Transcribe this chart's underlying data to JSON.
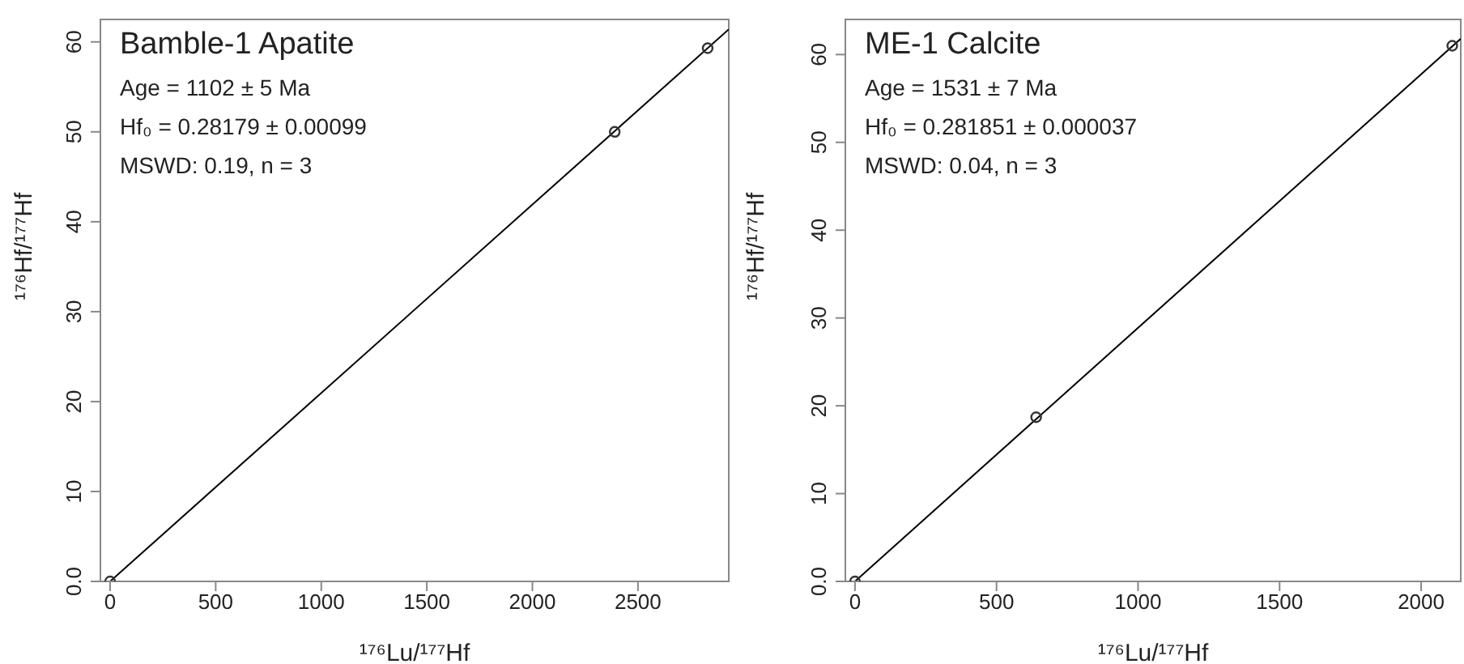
{
  "chart_data": [
    {
      "type": "scatter",
      "title": "Bamble-1 Apatite",
      "annotations": [
        "Age = 1102 ± 5 Ma",
        "Hf₀ = 0.28179 ± 0.00099",
        "MSWD: 0.19, n = 3"
      ],
      "xlabel": "¹⁷⁶Lu/¹⁷⁷Hf",
      "ylabel": "¹⁷⁶Hf/¹⁷⁷Hf",
      "xlim": [
        -46,
        2930
      ],
      "ylim": [
        0,
        62.5
      ],
      "xticks": [
        0,
        500,
        1000,
        1500,
        2000,
        2500
      ],
      "yticks": [
        {
          "value": 0,
          "label": "0.0"
        },
        10,
        20,
        30,
        40,
        50,
        60
      ],
      "marker": "circle",
      "grid": false,
      "series": [
        {
          "color": "#333333",
          "x": [
            0,
            2390,
            2830
          ],
          "values": [
            0,
            50,
            59.3
          ]
        },
        {
          "type": "line",
          "color": "#000000",
          "x": [
            0,
            2930
          ],
          "values": [
            0,
            61.4
          ],
          "marker": "none",
          "line_style": "solid"
        }
      ]
    },
    {
      "type": "scatter",
      "title": "ME-1 Calcite",
      "annotations": [
        "Age = 1531 ± 7 Ma",
        "Hf₀ = 0.281851 ± 0.000037",
        "MSWD: 0.04, n = 3"
      ],
      "xlabel": "¹⁷⁶Lu/¹⁷⁷Hf",
      "ylabel": "¹⁷⁶Hf/¹⁷⁷Hf",
      "xlim": [
        -34,
        2140
      ],
      "ylim": [
        0,
        64
      ],
      "xticks": [
        0,
        500,
        1000,
        1500,
        2000
      ],
      "yticks": [
        {
          "value": 0,
          "label": "0.0"
        },
        10,
        20,
        30,
        40,
        50,
        60
      ],
      "marker": "circle",
      "grid": false,
      "series": [
        {
          "color": "#333333",
          "x": [
            0,
            640,
            2110
          ],
          "values": [
            0,
            18.7,
            61
          ]
        },
        {
          "type": "line",
          "color": "#000000",
          "x": [
            0,
            2140
          ],
          "values": [
            0,
            61.8
          ],
          "marker": "none",
          "line_style": "solid"
        }
      ]
    }
  ]
}
